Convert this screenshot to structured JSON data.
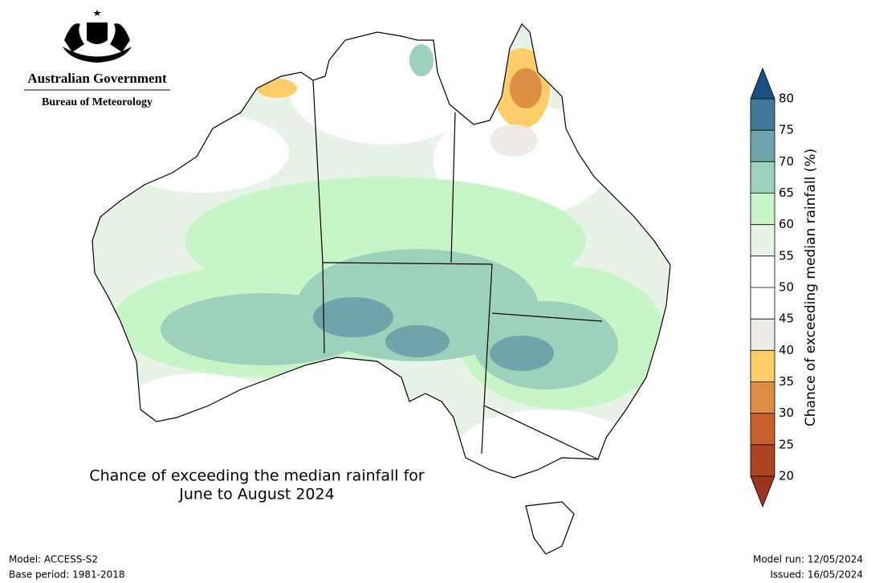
{
  "header": {
    "org": "Australian Government",
    "dept": "Bureau of Meteorology"
  },
  "map": {
    "title_lines": [
      "Chance of exceeding the median rainfall for",
      "June to August 2024"
    ]
  },
  "colorbar": {
    "label": "Chance of exceeding median rainfall (%)",
    "ticks": [
      20,
      25,
      30,
      35,
      40,
      45,
      50,
      55,
      60,
      65,
      70,
      75,
      80
    ],
    "color_below": "#9a3520",
    "colors": [
      "#ad4423",
      "#c8602e",
      "#dc8f42",
      "#fdcd6a",
      "#eeebe7",
      "#ffffff",
      "#ffffff",
      "#e6f3e6",
      "#c8f5c8",
      "#9ed1bc",
      "#70a4ab",
      "#3f7898"
    ],
    "color_above": "#1b4f82"
  },
  "footer": {
    "model": "Model: ACCESS-S2",
    "base_period": "Base period: 1981-2018",
    "model_run": "Model run: 12/05/2024",
    "issued": "Issued: 16/05/2024"
  }
}
